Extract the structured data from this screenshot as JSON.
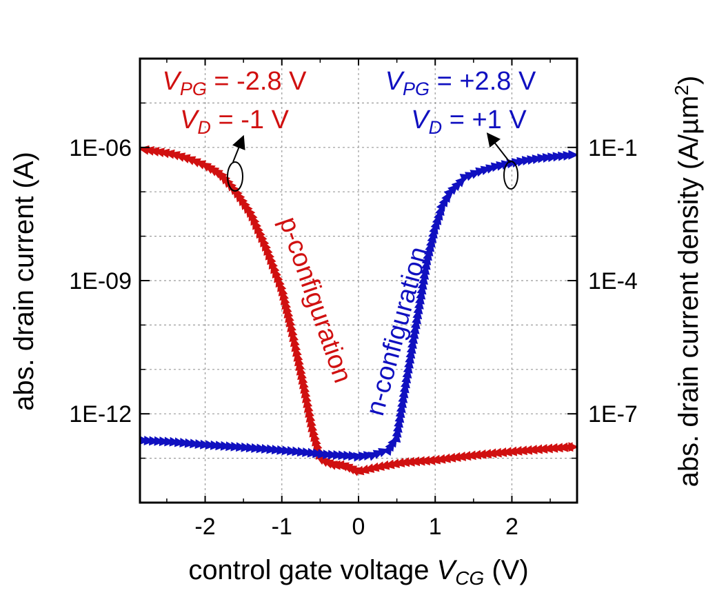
{
  "chart_data": {
    "type": "scatter",
    "title": "",
    "xlabel": "control gate voltage V_CG (V)",
    "xlabel_parts": {
      "prefix": "control gate voltage ",
      "var": "V",
      "sub": "CG",
      "suffix": " (V)"
    },
    "ylabel": "abs. drain current (A)",
    "y2label": "abs. drain current density (A/µm²)",
    "y2label_parts": {
      "main": "abs. drain current density (A/µm",
      "sup": "2",
      "end": ")"
    },
    "xlim": [
      -2.85,
      2.85
    ],
    "ylim": [
      1e-14,
      0.0001
    ],
    "yscale": "log",
    "x_ticks": [
      -2,
      -1,
      0,
      1,
      2
    ],
    "x_tick_labels": [
      "-2",
      "-1",
      "0",
      "1",
      "2"
    ],
    "y_ticks": [
      1e-06,
      1e-09,
      1e-12
    ],
    "y_tick_labels": [
      "1E-06",
      "1E-09",
      "1E-12"
    ],
    "y2_ticks": [
      0.1,
      0.0001,
      1e-07
    ],
    "y2_tick_labels": [
      "1E-1",
      "1E-4",
      "1E-7"
    ],
    "y2_scale_factor": 100000,
    "grid": true,
    "series": [
      {
        "name": "p-configuration",
        "color": "#d01010",
        "x": [
          -2.8,
          -2.6,
          -2.4,
          -2.2,
          -2.0,
          -1.8,
          -1.6,
          -1.4,
          -1.2,
          -1.0,
          -0.9,
          -0.8,
          -0.7,
          -0.6,
          -0.5,
          -0.4,
          -0.3,
          -0.2,
          -0.1,
          0.0,
          0.2,
          0.4,
          0.6,
          0.8,
          1.0,
          1.2,
          1.4,
          1.6,
          1.8,
          2.0,
          2.2,
          2.4,
          2.6,
          2.8
        ],
        "y": [
          9e-07,
          8e-07,
          7e-07,
          5.5e-07,
          4e-07,
          2.5e-07,
          1e-07,
          3e-08,
          5e-09,
          6e-10,
          1.2e-10,
          2e-11,
          3e-12,
          4e-13,
          1e-13,
          8e-14,
          7e-14,
          7e-14,
          6e-14,
          5e-14,
          6e-14,
          7e-14,
          8e-14,
          8.5e-14,
          9e-14,
          1e-13,
          1.1e-13,
          1.2e-13,
          1.3e-13,
          1.4e-13,
          1.5e-13,
          1.6e-13,
          1.7e-13,
          1.8e-13
        ]
      },
      {
        "name": "n-configuration",
        "color": "#1010c0",
        "x": [
          -2.8,
          -2.4,
          -2.0,
          -1.6,
          -1.2,
          -0.8,
          -0.4,
          0.0,
          0.2,
          0.4,
          0.5,
          0.6,
          0.7,
          0.8,
          0.9,
          1.0,
          1.1,
          1.2,
          1.4,
          1.6,
          1.8,
          2.0,
          2.2,
          2.4,
          2.6,
          2.8
        ],
        "y": [
          2.5e-13,
          2.3e-13,
          2e-13,
          1.8e-13,
          1.6e-13,
          1.4e-13,
          1.2e-13,
          1.1e-13,
          1.2e-13,
          1.6e-13,
          3e-13,
          3e-12,
          3e-11,
          3e-10,
          3e-09,
          1.5e-08,
          5e-08,
          1e-07,
          2.2e-07,
          3e-07,
          3.8e-07,
          4.5e-07,
          5.2e-07,
          5.8e-07,
          6.3e-07,
          6.8e-07
        ]
      }
    ],
    "annotations": {
      "p": {
        "line1": {
          "var": "V",
          "sub": "PG",
          "text": " = -2.8 V"
        },
        "line2": {
          "var": "V",
          "sub": "D",
          "text": " = -1 V"
        },
        "label": "p-configuration"
      },
      "n": {
        "line1": {
          "var": "V",
          "sub": "PG",
          "text": " = +2.8 V"
        },
        "line2": {
          "var": "V",
          "sub": "D",
          "text": " = +1 V"
        },
        "label": "n-configuration"
      }
    }
  }
}
